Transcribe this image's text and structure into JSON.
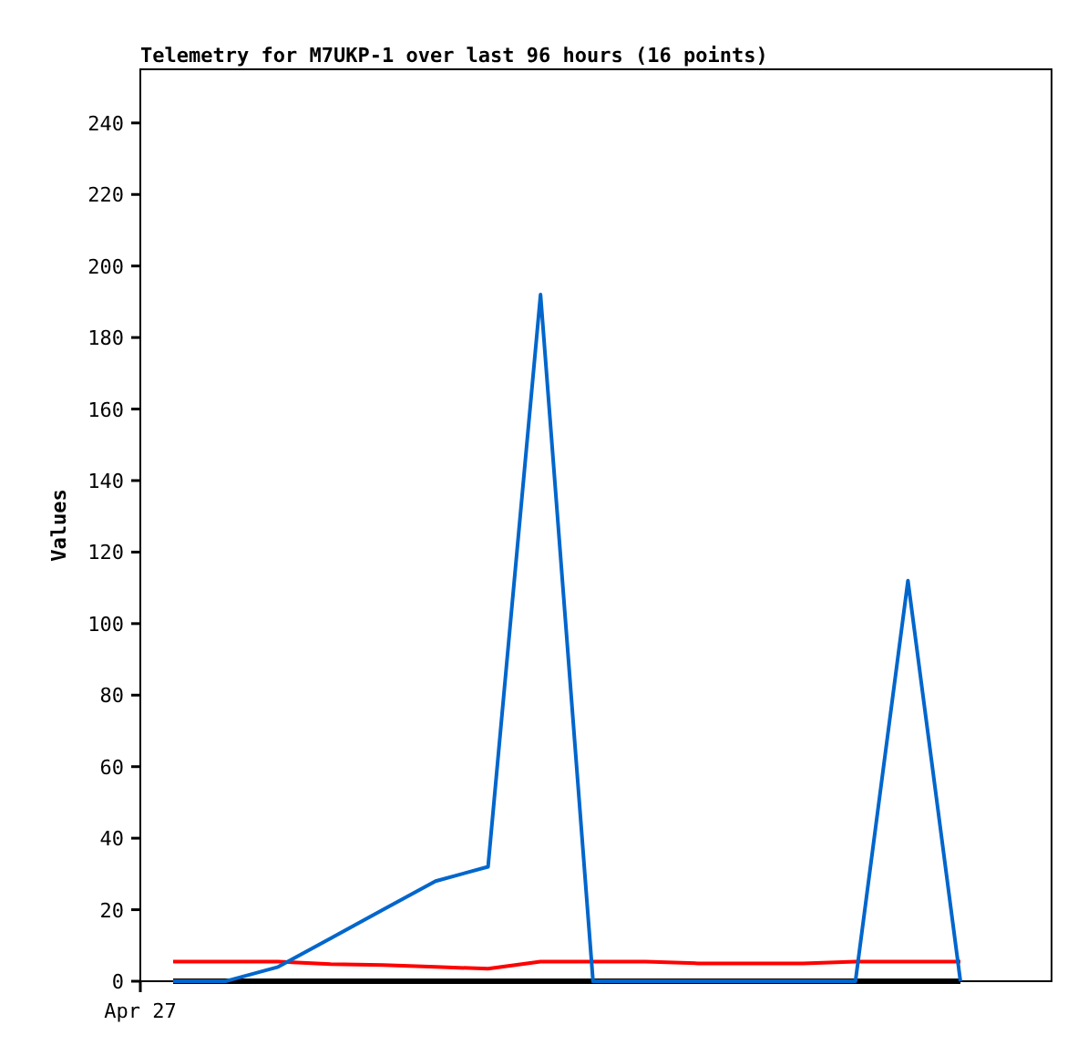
{
  "chart_data": {
    "type": "line",
    "title": "Telemetry for M7UKP-1 over last 96 hours (16 points)",
    "ylabel": "Values",
    "categories": [
      null,
      null,
      null,
      null,
      null,
      null,
      null,
      null,
      null,
      null,
      null,
      null,
      null,
      null,
      null,
      null
    ],
    "annotations": [
      "Apr 27"
    ],
    "ylim": [
      0,
      255
    ],
    "yticks": [
      0,
      20,
      40,
      60,
      80,
      100,
      120,
      140,
      160,
      180,
      200,
      220,
      240
    ],
    "grid": false,
    "marker": "none",
    "line_style": "solid",
    "series": [
      {
        "color": "#000000",
        "values": [
          0,
          0,
          0,
          0,
          0,
          0,
          0,
          0,
          0,
          0,
          0,
          0,
          0,
          0,
          0,
          0
        ]
      },
      {
        "color": "#ff0000",
        "values": [
          5.5,
          5.5,
          5.5,
          4.8,
          4.5,
          4,
          3.5,
          5.5,
          5.5,
          5.5,
          5,
          5,
          5,
          5.5,
          5.5,
          5.5
        ]
      },
      {
        "color": "#0066cc",
        "values": [
          0,
          0,
          4,
          12,
          20,
          28,
          32,
          192,
          0,
          0,
          0,
          0,
          0,
          0,
          112,
          0
        ]
      }
    ]
  }
}
